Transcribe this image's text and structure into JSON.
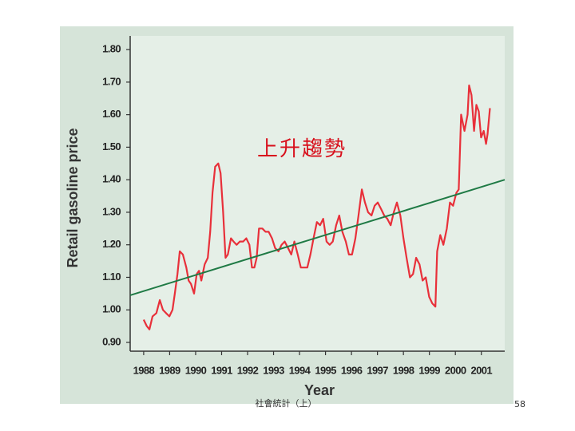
{
  "chart_data": {
    "type": "line",
    "ylabel": "Retail gasoline price",
    "xlabel": "Year",
    "annotation": "上升趨勢",
    "xlim": [
      1987.48,
      2001.9
    ],
    "xticks": [
      1988,
      1989,
      1990,
      1991,
      1992,
      1993,
      1994,
      1995,
      1996,
      1997,
      1998,
      1999,
      2000,
      2001
    ],
    "ylim": [
      0.873,
      1.842
    ],
    "yticks": [
      {
        "value": 0.9,
        "label": "0.90"
      },
      {
        "value": 1.0,
        "label": "1.00"
      },
      {
        "value": 1.1,
        "label": "1.10"
      },
      {
        "value": 1.2,
        "label": "1.20"
      },
      {
        "value": 1.3,
        "label": "1.30"
      },
      {
        "value": 1.4,
        "label": "1.40"
      },
      {
        "value": 1.5,
        "label": "1.50"
      },
      {
        "value": 1.6,
        "label": "1.60"
      },
      {
        "value": 1.7,
        "label": "1.70"
      },
      {
        "value": 1.8,
        "label": "1.80"
      }
    ],
    "x": [
      1988.0,
      1988.12,
      1988.22,
      1988.34,
      1988.49,
      1988.62,
      1988.74,
      1988.86,
      1988.99,
      1989.11,
      1989.2,
      1989.3,
      1989.39,
      1989.51,
      1989.64,
      1989.73,
      1989.82,
      1989.94,
      1990.04,
      1990.13,
      1990.22,
      1990.35,
      1990.47,
      1990.56,
      1990.65,
      1990.75,
      1990.87,
      1990.96,
      1991.06,
      1991.15,
      1991.24,
      1991.36,
      1991.46,
      1991.58,
      1991.7,
      1991.83,
      1991.95,
      1992.07,
      1992.17,
      1992.26,
      1992.35,
      1992.44,
      1992.57,
      1992.69,
      1992.81,
      1992.94,
      1993.06,
      1993.19,
      1993.31,
      1993.43,
      1993.56,
      1993.68,
      1993.8,
      1993.93,
      1994.05,
      1994.17,
      1994.3,
      1994.42,
      1994.54,
      1994.67,
      1994.79,
      1994.91,
      1995.04,
      1995.16,
      1995.28,
      1995.41,
      1995.53,
      1995.65,
      1995.78,
      1995.9,
      1996.02,
      1996.15,
      1996.27,
      1996.4,
      1996.52,
      1996.64,
      1996.77,
      1996.89,
      1997.01,
      1997.14,
      1997.26,
      1997.38,
      1997.51,
      1997.63,
      1997.75,
      1997.88,
      1998.0,
      1998.12,
      1998.25,
      1998.37,
      1998.49,
      1998.62,
      1998.74,
      1998.86,
      1998.99,
      1999.11,
      1999.23,
      1999.3,
      1999.42,
      1999.54,
      1999.67,
      1999.79,
      1999.91,
      2000.04,
      2000.13,
      2000.22,
      2000.35,
      2000.47,
      2000.53,
      2000.62,
      2000.72,
      2000.81,
      2000.9,
      2000.99,
      2001.09,
      2001.18,
      2001.24,
      2001.33
    ],
    "series": [
      {
        "color": "#e8303a",
        "values": [
          0.97,
          0.95,
          0.94,
          0.98,
          0.99,
          1.03,
          1.0,
          0.99,
          0.98,
          1.0,
          1.05,
          1.11,
          1.18,
          1.17,
          1.13,
          1.09,
          1.08,
          1.05,
          1.11,
          1.12,
          1.09,
          1.14,
          1.16,
          1.24,
          1.36,
          1.44,
          1.45,
          1.42,
          1.3,
          1.16,
          1.17,
          1.22,
          1.21,
          1.2,
          1.21,
          1.21,
          1.22,
          1.2,
          1.13,
          1.13,
          1.16,
          1.25,
          1.25,
          1.24,
          1.24,
          1.22,
          1.19,
          1.18,
          1.2,
          1.21,
          1.19,
          1.17,
          1.21,
          1.17,
          1.13,
          1.13,
          1.13,
          1.17,
          1.22,
          1.27,
          1.26,
          1.28,
          1.21,
          1.2,
          1.21,
          1.26,
          1.29,
          1.24,
          1.21,
          1.17,
          1.17,
          1.22,
          1.29,
          1.37,
          1.33,
          1.3,
          1.29,
          1.32,
          1.33,
          1.31,
          1.29,
          1.28,
          1.26,
          1.3,
          1.33,
          1.29,
          1.22,
          1.16,
          1.1,
          1.11,
          1.16,
          1.14,
          1.09,
          1.1,
          1.04,
          1.02,
          1.01,
          1.18,
          1.23,
          1.2,
          1.25,
          1.33,
          1.32,
          1.36,
          1.37,
          1.6,
          1.55,
          1.6,
          1.69,
          1.66,
          1.55,
          1.63,
          1.61,
          1.53,
          1.55,
          1.51,
          1.54,
          1.62
        ]
      }
    ],
    "trend": {
      "color": "#1f7a45",
      "x": [
        1987.48,
        2001.9
      ],
      "values": [
        1.045,
        1.4
      ]
    }
  },
  "footer": {
    "text": "社會統計（上）",
    "page": "58"
  }
}
